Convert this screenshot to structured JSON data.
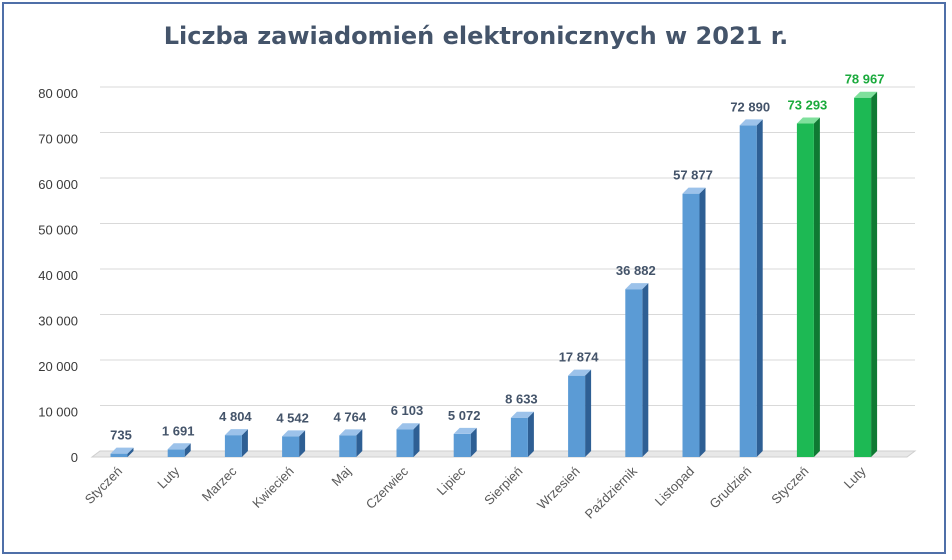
{
  "chart_data": {
    "type": "bar",
    "title": "Liczba zawiadomień elektronicznych w 2021 r.",
    "xlabel": "",
    "ylabel": "",
    "ylim": [
      0,
      80000
    ],
    "yticks": [
      0,
      10000,
      20000,
      30000,
      40000,
      50000,
      60000,
      70000,
      80000
    ],
    "ytick_labels": [
      "0",
      "10 000",
      "20 000",
      "30 000",
      "40 000",
      "50 000",
      "60 000",
      "70 000",
      "80 000"
    ],
    "grid": true,
    "categories": [
      "Styczeń",
      "Luty",
      "Marzec",
      "Kwiecień",
      "Maj",
      "Czerwiec",
      "Lipiec",
      "Sierpień",
      "Wrzesień",
      "Październik",
      "Listopad",
      "Grudzień",
      "Styczeń",
      "Luty"
    ],
    "values": [
      735,
      1691,
      4804,
      4542,
      4764,
      6103,
      5072,
      8633,
      17874,
      36882,
      57877,
      72890,
      73293,
      78967
    ],
    "value_labels": [
      "735",
      "1 691",
      "4 804",
      "4 542",
      "4 764",
      "6 103",
      "5 072",
      "8 633",
      "17 874",
      "36 882",
      "57 877",
      "72 890",
      "73 293",
      "78 967"
    ],
    "bar_colors": [
      "#5b9bd5",
      "#5b9bd5",
      "#5b9bd5",
      "#5b9bd5",
      "#5b9bd5",
      "#5b9bd5",
      "#5b9bd5",
      "#5b9bd5",
      "#5b9bd5",
      "#5b9bd5",
      "#5b9bd5",
      "#5b9bd5",
      "#1db954",
      "#1db954"
    ],
    "label_colors": [
      "#44546a",
      "#44546a",
      "#44546a",
      "#44546a",
      "#44546a",
      "#44546a",
      "#44546a",
      "#44546a",
      "#44546a",
      "#44546a",
      "#44546a",
      "#44546a",
      "#1aaa3c",
      "#1aaa3c"
    ]
  },
  "colors": {
    "blue_front": "#5b9bd5",
    "blue_side": "#2e5f94",
    "blue_top": "#9cc2ea",
    "green_front": "#1db954",
    "green_side": "#0f7a33",
    "green_top": "#7fe09c",
    "grid": "#d9d9d9",
    "frame": "#4f6fa8",
    "title": "#44546a"
  }
}
